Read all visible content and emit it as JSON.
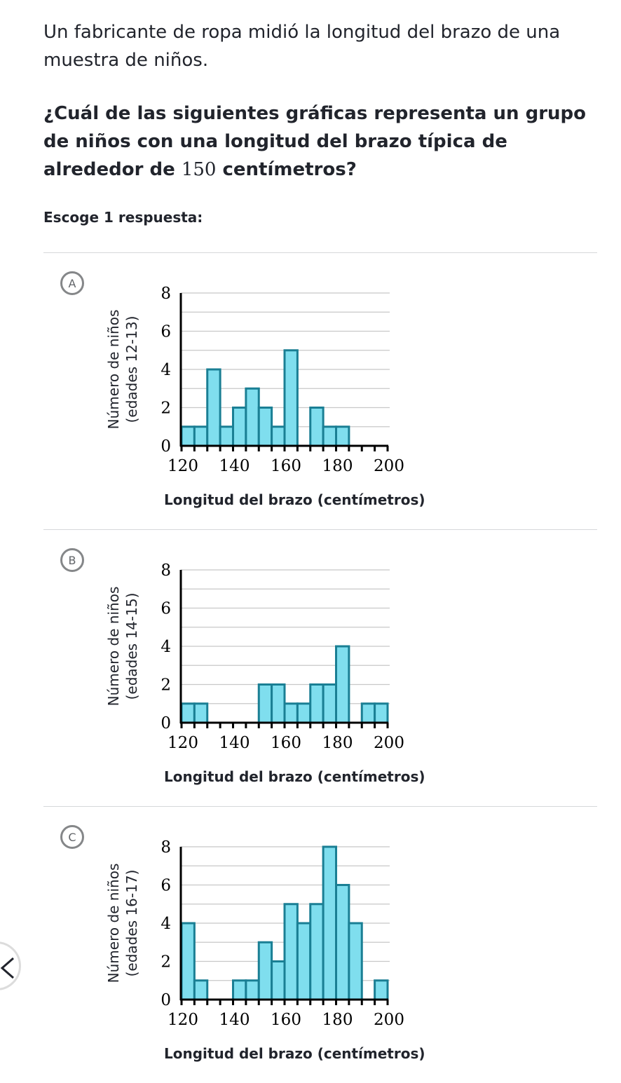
{
  "intro_text": "Un fabricante de ropa midió la longitud del brazo de una muestra de niños.",
  "question": {
    "part1": "¿Cuál de las siguientes gráficas representa un grupo de niños con una longitud del brazo típica de alrededor de ",
    "number": "150",
    "part2": " centímetros?"
  },
  "prompt": "Escoge 1 respuesta:",
  "nav": {
    "prev_icon": "chevron-left-icon"
  },
  "colors": {
    "bar_fill": "#7fdeee",
    "bar_stroke": "#1a7f94",
    "grid": "#c8c8c8",
    "axis": "#000000"
  },
  "choices": [
    {
      "letter": "A",
      "ylabel_line1": "Número de niños",
      "ylabel_line2": "(edades 12-13)",
      "xlabel": "Longitud del brazo (centímetros)"
    },
    {
      "letter": "B",
      "ylabel_line1": "Número de niños",
      "ylabel_line2": "(edades 14-15)",
      "xlabel": "Longitud del brazo (centímetros)"
    },
    {
      "letter": "C",
      "ylabel_line1": "Número de niños",
      "ylabel_line2": "(edades 16-17)",
      "xlabel": "Longitud del brazo (centímetros)"
    }
  ],
  "chart_data": [
    {
      "type": "bar",
      "title": "",
      "xlabel": "Longitud del brazo (centímetros)",
      "ylabel": "Número de niños (edades 12-13)",
      "bin_width": 5,
      "xlim": [
        120,
        200
      ],
      "ylim": [
        0,
        8
      ],
      "x_ticks": [
        120,
        140,
        160,
        180,
        200
      ],
      "y_ticks": [
        0,
        2,
        4,
        6,
        8
      ],
      "grid": true,
      "bin_starts": [
        120,
        125,
        130,
        135,
        140,
        145,
        150,
        155,
        160,
        165,
        170,
        175,
        180,
        185,
        190,
        195
      ],
      "values": [
        1,
        1,
        4,
        1,
        2,
        3,
        2,
        1,
        5,
        0,
        2,
        1,
        1,
        0,
        0,
        0
      ]
    },
    {
      "type": "bar",
      "title": "",
      "xlabel": "Longitud del brazo (centímetros)",
      "ylabel": "Número de niños (edades 14-15)",
      "bin_width": 5,
      "xlim": [
        120,
        200
      ],
      "ylim": [
        0,
        8
      ],
      "x_ticks": [
        120,
        140,
        160,
        180,
        200
      ],
      "y_ticks": [
        0,
        2,
        4,
        6,
        8
      ],
      "grid": true,
      "bin_starts": [
        120,
        125,
        130,
        135,
        140,
        145,
        150,
        155,
        160,
        165,
        170,
        175,
        180,
        185,
        190,
        195
      ],
      "values": [
        1,
        1,
        0,
        0,
        0,
        0,
        2,
        2,
        1,
        1,
        2,
        2,
        4,
        0,
        1,
        1
      ]
    },
    {
      "type": "bar",
      "title": "",
      "xlabel": "Longitud del brazo (centímetros)",
      "ylabel": "Número de niños (edades 16-17)",
      "bin_width": 5,
      "xlim": [
        120,
        200
      ],
      "ylim": [
        0,
        8
      ],
      "x_ticks": [
        120,
        140,
        160,
        180,
        200
      ],
      "y_ticks": [
        0,
        2,
        4,
        6,
        8
      ],
      "grid": true,
      "bin_starts": [
        120,
        125,
        130,
        135,
        140,
        145,
        150,
        155,
        160,
        165,
        170,
        175,
        180,
        185,
        190,
        195
      ],
      "values": [
        4,
        1,
        0,
        0,
        1,
        1,
        3,
        2,
        5,
        4,
        5,
        8,
        6,
        4,
        0,
        1
      ]
    }
  ]
}
